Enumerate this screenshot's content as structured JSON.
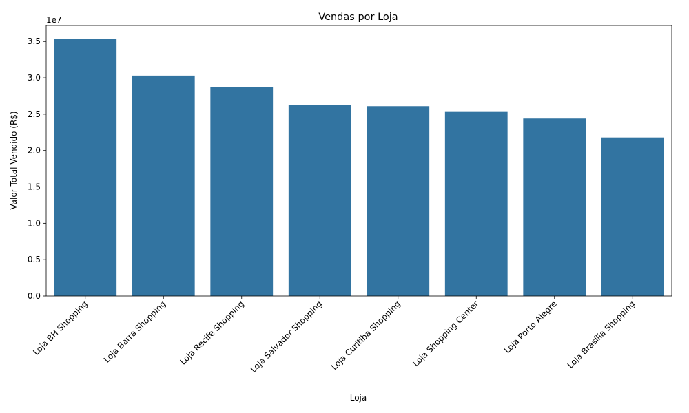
{
  "chart_data": {
    "type": "bar",
    "title": "Vendas por Loja",
    "xlabel": "Loja",
    "ylabel": "Valor Total Vendido (R$)",
    "offset_label": "1e7",
    "categories": [
      "Loja BH Shopping",
      "Loja Barra Shopping",
      "Loja Recife Shopping",
      "Loja Salvador Shopping",
      "Loja Curitiba Shopping",
      "Loja Shopping Center",
      "Loja Porto Alegre",
      "Loja Brasília Shopping"
    ],
    "values": [
      35400000,
      30300000,
      28700000,
      26300000,
      26100000,
      25400000,
      24400000,
      21800000
    ],
    "ylim": [
      0,
      37200000
    ],
    "yticks": [
      0,
      5000000,
      10000000,
      15000000,
      20000000,
      25000000,
      30000000,
      35000000
    ],
    "ytick_labels": [
      "0.0",
      "0.5",
      "1.0",
      "1.5",
      "2.0",
      "2.5",
      "3.0",
      "3.5"
    ],
    "bar_color": "#3274a1",
    "grid": false,
    "legend": "none"
  }
}
